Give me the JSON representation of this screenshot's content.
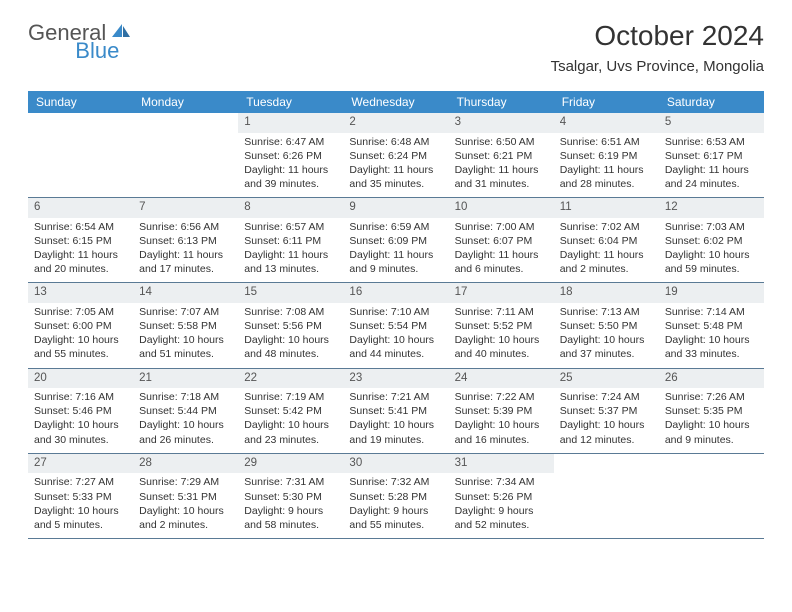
{
  "logo": {
    "general": "General",
    "blue": "Blue"
  },
  "title": "October 2024",
  "location": "Tsalgar, Uvs Province, Mongolia",
  "colors": {
    "header_bg": "#3a8ac9",
    "header_text": "#ffffff",
    "daynum_bg": "#eceff1",
    "daynum_text": "#555555",
    "body_text": "#333333",
    "divider": "#5a7a95",
    "logo_gray": "#555555",
    "logo_blue": "#3a8ac9"
  },
  "weekdays": [
    "Sunday",
    "Monday",
    "Tuesday",
    "Wednesday",
    "Thursday",
    "Friday",
    "Saturday"
  ],
  "weeks": [
    [
      {
        "blank": true
      },
      {
        "blank": true
      },
      {
        "day": "1",
        "sunrise": "Sunrise: 6:47 AM",
        "sunset": "Sunset: 6:26 PM",
        "daylight": "Daylight: 11 hours and 39 minutes."
      },
      {
        "day": "2",
        "sunrise": "Sunrise: 6:48 AM",
        "sunset": "Sunset: 6:24 PM",
        "daylight": "Daylight: 11 hours and 35 minutes."
      },
      {
        "day": "3",
        "sunrise": "Sunrise: 6:50 AM",
        "sunset": "Sunset: 6:21 PM",
        "daylight": "Daylight: 11 hours and 31 minutes."
      },
      {
        "day": "4",
        "sunrise": "Sunrise: 6:51 AM",
        "sunset": "Sunset: 6:19 PM",
        "daylight": "Daylight: 11 hours and 28 minutes."
      },
      {
        "day": "5",
        "sunrise": "Sunrise: 6:53 AM",
        "sunset": "Sunset: 6:17 PM",
        "daylight": "Daylight: 11 hours and 24 minutes."
      }
    ],
    [
      {
        "day": "6",
        "sunrise": "Sunrise: 6:54 AM",
        "sunset": "Sunset: 6:15 PM",
        "daylight": "Daylight: 11 hours and 20 minutes."
      },
      {
        "day": "7",
        "sunrise": "Sunrise: 6:56 AM",
        "sunset": "Sunset: 6:13 PM",
        "daylight": "Daylight: 11 hours and 17 minutes."
      },
      {
        "day": "8",
        "sunrise": "Sunrise: 6:57 AM",
        "sunset": "Sunset: 6:11 PM",
        "daylight": "Daylight: 11 hours and 13 minutes."
      },
      {
        "day": "9",
        "sunrise": "Sunrise: 6:59 AM",
        "sunset": "Sunset: 6:09 PM",
        "daylight": "Daylight: 11 hours and 9 minutes."
      },
      {
        "day": "10",
        "sunrise": "Sunrise: 7:00 AM",
        "sunset": "Sunset: 6:07 PM",
        "daylight": "Daylight: 11 hours and 6 minutes."
      },
      {
        "day": "11",
        "sunrise": "Sunrise: 7:02 AM",
        "sunset": "Sunset: 6:04 PM",
        "daylight": "Daylight: 11 hours and 2 minutes."
      },
      {
        "day": "12",
        "sunrise": "Sunrise: 7:03 AM",
        "sunset": "Sunset: 6:02 PM",
        "daylight": "Daylight: 10 hours and 59 minutes."
      }
    ],
    [
      {
        "day": "13",
        "sunrise": "Sunrise: 7:05 AM",
        "sunset": "Sunset: 6:00 PM",
        "daylight": "Daylight: 10 hours and 55 minutes."
      },
      {
        "day": "14",
        "sunrise": "Sunrise: 7:07 AM",
        "sunset": "Sunset: 5:58 PM",
        "daylight": "Daylight: 10 hours and 51 minutes."
      },
      {
        "day": "15",
        "sunrise": "Sunrise: 7:08 AM",
        "sunset": "Sunset: 5:56 PM",
        "daylight": "Daylight: 10 hours and 48 minutes."
      },
      {
        "day": "16",
        "sunrise": "Sunrise: 7:10 AM",
        "sunset": "Sunset: 5:54 PM",
        "daylight": "Daylight: 10 hours and 44 minutes."
      },
      {
        "day": "17",
        "sunrise": "Sunrise: 7:11 AM",
        "sunset": "Sunset: 5:52 PM",
        "daylight": "Daylight: 10 hours and 40 minutes."
      },
      {
        "day": "18",
        "sunrise": "Sunrise: 7:13 AM",
        "sunset": "Sunset: 5:50 PM",
        "daylight": "Daylight: 10 hours and 37 minutes."
      },
      {
        "day": "19",
        "sunrise": "Sunrise: 7:14 AM",
        "sunset": "Sunset: 5:48 PM",
        "daylight": "Daylight: 10 hours and 33 minutes."
      }
    ],
    [
      {
        "day": "20",
        "sunrise": "Sunrise: 7:16 AM",
        "sunset": "Sunset: 5:46 PM",
        "daylight": "Daylight: 10 hours and 30 minutes."
      },
      {
        "day": "21",
        "sunrise": "Sunrise: 7:18 AM",
        "sunset": "Sunset: 5:44 PM",
        "daylight": "Daylight: 10 hours and 26 minutes."
      },
      {
        "day": "22",
        "sunrise": "Sunrise: 7:19 AM",
        "sunset": "Sunset: 5:42 PM",
        "daylight": "Daylight: 10 hours and 23 minutes."
      },
      {
        "day": "23",
        "sunrise": "Sunrise: 7:21 AM",
        "sunset": "Sunset: 5:41 PM",
        "daylight": "Daylight: 10 hours and 19 minutes."
      },
      {
        "day": "24",
        "sunrise": "Sunrise: 7:22 AM",
        "sunset": "Sunset: 5:39 PM",
        "daylight": "Daylight: 10 hours and 16 minutes."
      },
      {
        "day": "25",
        "sunrise": "Sunrise: 7:24 AM",
        "sunset": "Sunset: 5:37 PM",
        "daylight": "Daylight: 10 hours and 12 minutes."
      },
      {
        "day": "26",
        "sunrise": "Sunrise: 7:26 AM",
        "sunset": "Sunset: 5:35 PM",
        "daylight": "Daylight: 10 hours and 9 minutes."
      }
    ],
    [
      {
        "day": "27",
        "sunrise": "Sunrise: 7:27 AM",
        "sunset": "Sunset: 5:33 PM",
        "daylight": "Daylight: 10 hours and 5 minutes."
      },
      {
        "day": "28",
        "sunrise": "Sunrise: 7:29 AM",
        "sunset": "Sunset: 5:31 PM",
        "daylight": "Daylight: 10 hours and 2 minutes."
      },
      {
        "day": "29",
        "sunrise": "Sunrise: 7:31 AM",
        "sunset": "Sunset: 5:30 PM",
        "daylight": "Daylight: 9 hours and 58 minutes."
      },
      {
        "day": "30",
        "sunrise": "Sunrise: 7:32 AM",
        "sunset": "Sunset: 5:28 PM",
        "daylight": "Daylight: 9 hours and 55 minutes."
      },
      {
        "day": "31",
        "sunrise": "Sunrise: 7:34 AM",
        "sunset": "Sunset: 5:26 PM",
        "daylight": "Daylight: 9 hours and 52 minutes."
      },
      {
        "blank": true
      },
      {
        "blank": true
      }
    ]
  ]
}
